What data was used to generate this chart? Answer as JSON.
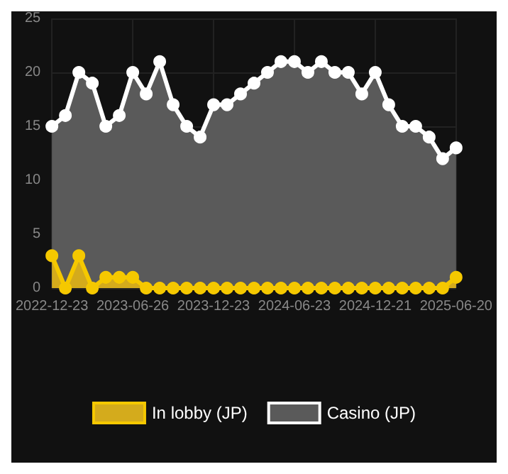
{
  "chart_data": {
    "type": "area",
    "categories": [
      "2022-12-23",
      null,
      null,
      null,
      null,
      null,
      "2023-06-26",
      null,
      null,
      null,
      null,
      null,
      "2023-12-23",
      null,
      null,
      null,
      null,
      null,
      "2024-06-23",
      null,
      null,
      null,
      null,
      null,
      "2024-12-21",
      null,
      null,
      null,
      null,
      null,
      "2025-06-20"
    ],
    "series": [
      {
        "name": "In lobby (JP)",
        "color": "#f5c800",
        "values": [
          3,
          0,
          3,
          0,
          1,
          1,
          1,
          0,
          0,
          0,
          0,
          0,
          0,
          0,
          0,
          0,
          0,
          0,
          0,
          0,
          0,
          0,
          0,
          0,
          0,
          0,
          0,
          0,
          0,
          0,
          1
        ]
      },
      {
        "name": "Casino (JP)",
        "color": "#ffffff",
        "values": [
          15,
          16,
          20,
          19,
          15,
          16,
          20,
          18,
          21,
          17,
          15,
          14,
          17,
          17,
          18,
          19,
          20,
          21,
          21,
          20,
          21,
          20,
          20,
          18,
          20,
          17,
          15,
          15,
          14,
          12,
          13
        ]
      }
    ],
    "ylim": [
      0,
      25
    ],
    "yticks": [
      0,
      5,
      10,
      15,
      20,
      25
    ],
    "grid": true,
    "legend": "bottom",
    "marker": "circle",
    "line_style": "solid"
  }
}
